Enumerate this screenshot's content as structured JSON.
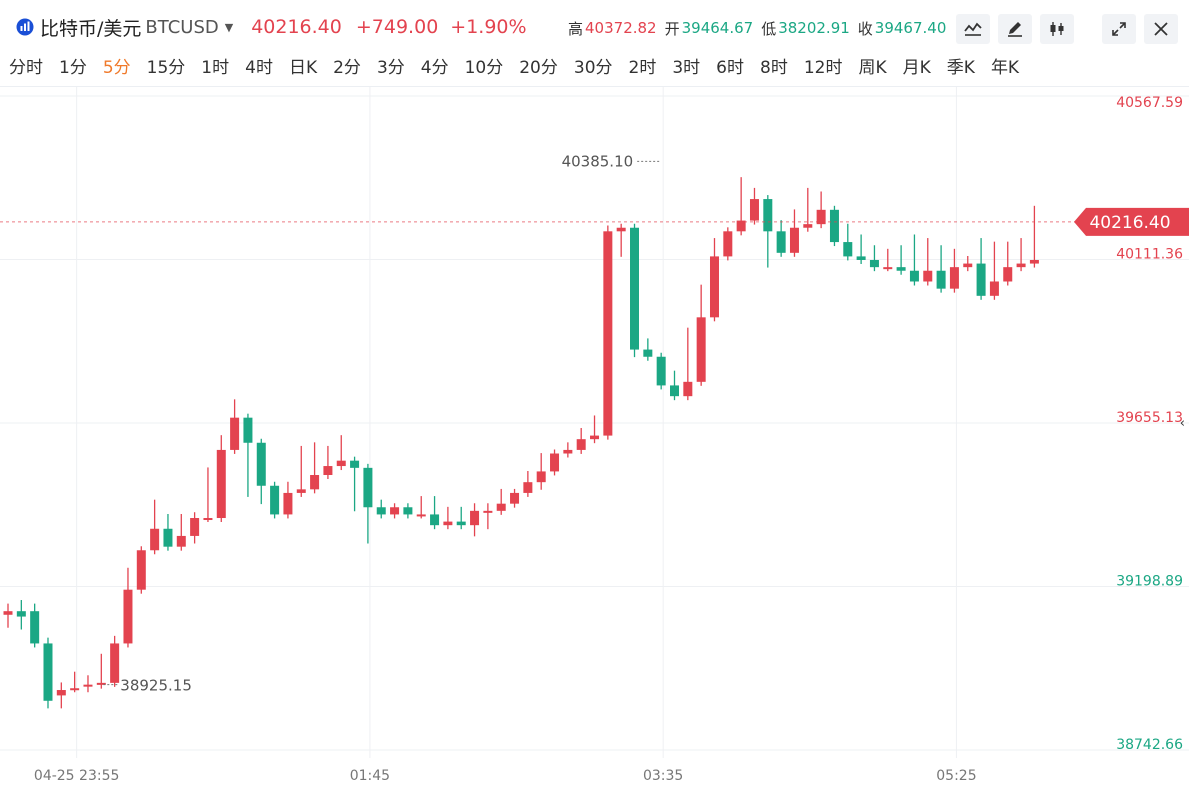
{
  "header": {
    "symbol_name": "比特币/美元",
    "symbol_code": "BTCUSD",
    "price": "40216.40",
    "change": "+749.00",
    "change_pct": "+1.90%",
    "high_label": "高",
    "high": "40372.82",
    "open_label": "开",
    "open": "39464.67",
    "low_label": "低",
    "low": "38202.91",
    "close_label": "收",
    "close": "39467.40"
  },
  "tabs": [
    "分时",
    "1分",
    "5分",
    "15分",
    "1时",
    "4时",
    "日K",
    "2分",
    "3分",
    "4分",
    "10分",
    "20分",
    "30分",
    "2时",
    "3时",
    "6时",
    "8时",
    "12时",
    "周K",
    "月K",
    "季K",
    "年K"
  ],
  "active_tab": 2,
  "icons": [
    "line-chart-icon",
    "pencil-icon",
    "candlestick-icon",
    "expand-icon",
    "close-icon"
  ],
  "colors": {
    "up": "#e3434f",
    "down": "#1ba784",
    "accent": "#f07a2b"
  },
  "chart_data": {
    "type": "candlestick",
    "ylim": [
      38742.66,
      40567.59
    ],
    "y_ticks": [
      {
        "value": 40567.59,
        "label": "40567.59"
      },
      {
        "value": 40111.36,
        "label": "40111.36"
      },
      {
        "value": 39655.13,
        "label": "39655.13"
      },
      {
        "value": 39198.89,
        "label": "39198.89"
      },
      {
        "value": 38742.66,
        "label": "38742.66"
      }
    ],
    "x_ticks": [
      {
        "index": 5,
        "label": "04-25 23:55"
      },
      {
        "index": 27,
        "label": "01:45"
      },
      {
        "index": 49,
        "label": "03:35"
      },
      {
        "index": 71,
        "label": "05:25"
      }
    ],
    "candles": [
      [
        39120,
        39140,
        39095,
        39130
      ],
      [
        39130,
        39150,
        39090,
        39115
      ],
      [
        39130,
        39140,
        39040,
        39040
      ],
      [
        39040,
        39045,
        38870,
        38880
      ],
      [
        38895,
        38920,
        38870,
        38910
      ],
      [
        38915,
        38950,
        38925,
        38915
      ],
      [
        38925,
        38940,
        38915,
        38925
      ],
      [
        38925,
        39000,
        38990,
        38930
      ],
      [
        38930,
        39050,
        38995,
        39040
      ],
      [
        39040,
        39185,
        39240,
        39190
      ],
      [
        39190,
        39290,
        39300,
        39300
      ],
      [
        39300,
        39320,
        39430,
        39360
      ],
      [
        39360,
        39390,
        39390,
        39310
      ],
      [
        39310,
        39390,
        39380,
        39340
      ],
      [
        39340,
        39395,
        39330,
        39390
      ],
      [
        39390,
        39520,
        39440,
        39390
      ],
      [
        39390,
        39490,
        39610,
        39580
      ],
      [
        39580,
        39685,
        39710,
        39670
      ],
      [
        39670,
        39560,
        39460,
        39600
      ],
      [
        39600,
        39460,
        39440,
        39480
      ],
      [
        39480,
        39440,
        39460,
        39400
      ],
      [
        39400,
        39480,
        39430,
        39460
      ],
      [
        39460,
        39470,
        39580,
        39470
      ],
      [
        39470,
        39510,
        39590,
        39510
      ],
      [
        39510,
        39560,
        39580,
        39535
      ],
      [
        39535,
        39600,
        39610,
        39550
      ],
      [
        39550,
        39550,
        39420,
        39530
      ],
      [
        39530,
        39420,
        39330,
        39420
      ],
      [
        39420,
        39430,
        39400,
        39400
      ],
      [
        39400,
        39410,
        39400,
        39420
      ],
      [
        39420,
        39410,
        39420,
        39400
      ],
      [
        39400,
        39410,
        39440,
        39400
      ],
      [
        39400,
        39440,
        39370,
        39370
      ],
      [
        39370,
        39390,
        39410,
        39380
      ],
      [
        39380,
        39380,
        39410,
        39370
      ],
      [
        39370,
        39420,
        39350,
        39410
      ],
      [
        39410,
        39420,
        39370,
        39410
      ],
      [
        39410,
        39460,
        39410,
        39430
      ],
      [
        39430,
        39460,
        39450,
        39460
      ],
      [
        39460,
        39510,
        39460,
        39490
      ],
      [
        39490,
        39560,
        39480,
        39520
      ],
      [
        39520,
        39570,
        39530,
        39570
      ],
      [
        39570,
        39580,
        39590,
        39580
      ],
      [
        39580,
        39620,
        39630,
        39610
      ],
      [
        39610,
        39665,
        39660,
        39620
      ],
      [
        39620,
        40080,
        40195,
        40190
      ],
      [
        40190,
        40160,
        40130,
        40200
      ],
      [
        40200,
        39860,
        39850,
        39860
      ],
      [
        39860,
        39870,
        39880,
        39840
      ],
      [
        39840,
        39780,
        39780,
        39760
      ],
      [
        39760,
        39770,
        39790,
        39730
      ],
      [
        39730,
        39910,
        39800,
        39770
      ],
      [
        39770,
        40030,
        40030,
        39950
      ],
      [
        39950,
        40100,
        40160,
        40120
      ],
      [
        40120,
        40185,
        40180,
        40190
      ],
      [
        40190,
        40280,
        40330,
        40220
      ],
      [
        40220,
        40240,
        40300,
        40280
      ],
      [
        40280,
        40230,
        40100,
        40190
      ],
      [
        40190,
        40200,
        40210,
        40130
      ],
      [
        40130,
        40210,
        40240,
        40200
      ],
      [
        40200,
        40280,
        40300,
        40210
      ],
      [
        40210,
        40250,
        40290,
        40250
      ],
      [
        40250,
        40210,
        40200,
        40160
      ],
      [
        40160,
        40180,
        40200,
        40120
      ],
      [
        40120,
        40170,
        40160,
        40110
      ],
      [
        40110,
        40140,
        40120,
        40090
      ],
      [
        40090,
        40120,
        40130,
        40090
      ],
      [
        40090,
        40125,
        40140,
        40080
      ],
      [
        40080,
        40160,
        40170,
        40050
      ],
      [
        40050,
        40160,
        40150,
        40080
      ],
      [
        40080,
        40140,
        40130,
        40030
      ],
      [
        40030,
        40120,
        40130,
        40090
      ],
      [
        40090,
        40110,
        40110,
        40100
      ],
      [
        40100,
        40160,
        40150,
        40010
      ],
      [
        40010,
        40150,
        40150,
        40050
      ],
      [
        40050,
        40130,
        40150,
        40090
      ],
      [
        40090,
        40160,
        40160,
        40100
      ],
      [
        40100,
        40210,
        40250,
        40110
      ]
    ],
    "max_label": "40385.10",
    "max_index": 49,
    "max_value": 40385.1,
    "min_label": "38925.15",
    "min_index": 7,
    "min_value": 38925.15,
    "last_price": 40216.4,
    "last_price_label": "40216.40"
  }
}
